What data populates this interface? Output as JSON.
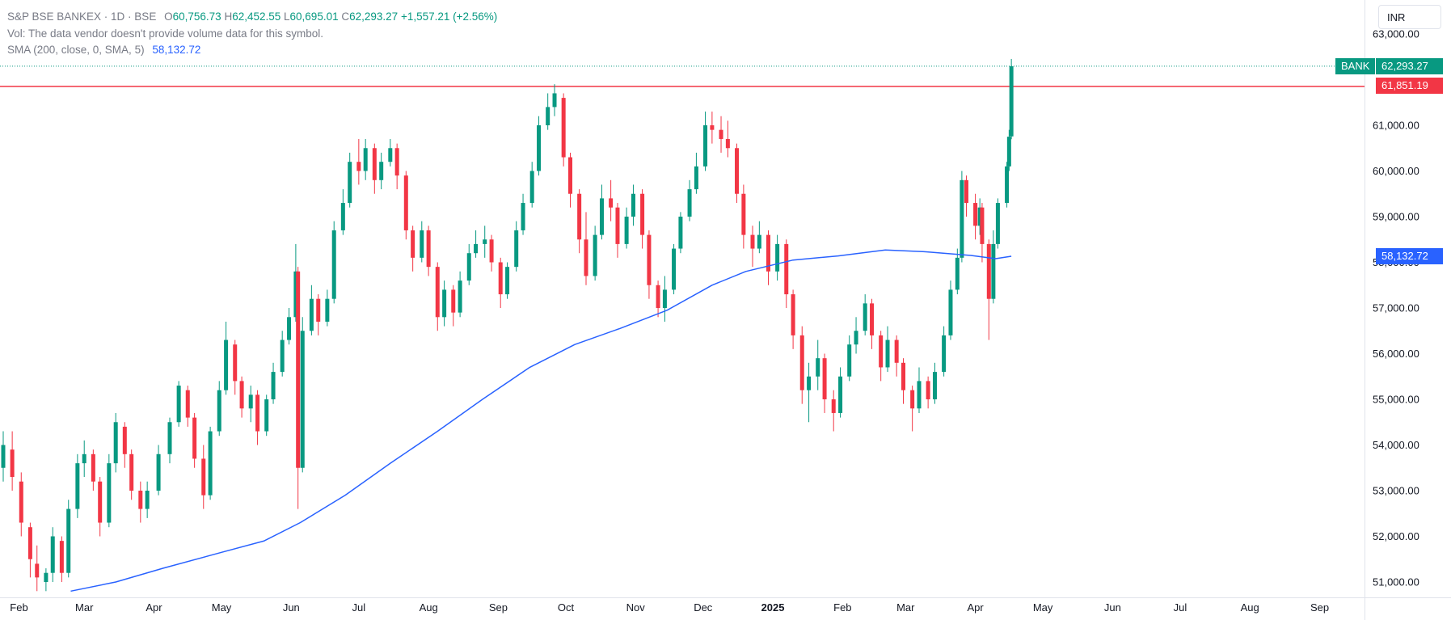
{
  "legend": {
    "symbol": "S&P BSE BANKEX · 1D · BSE",
    "o_label": "O",
    "o_value": "60,756.73",
    "h_label": "H",
    "h_value": "62,452.55",
    "l_label": "L",
    "l_value": "60,695.01",
    "c_label": "C",
    "c_value": "62,293.27",
    "change": "+1,557.21 (+2.56%)",
    "volume_note": "Vol: The data vendor doesn't provide volume data for this symbol.",
    "sma_label": "SMA (200, close, 0, SMA, 5)",
    "sma_value": "58,132.72"
  },
  "currency_button": "INR",
  "price_tags": {
    "symbol_tag": "BANK",
    "last_price": "62,293.27",
    "horizontal_line": "61,851.19",
    "sma": "58,132.72"
  },
  "chart_data": {
    "type": "candlestick",
    "symbol": "S&P BSE BANKEX",
    "interval": "1D",
    "y_axis": {
      "ticks": [
        51000,
        52000,
        53000,
        54000,
        55000,
        56000,
        57000,
        58000,
        59000,
        60000,
        61000,
        63000
      ],
      "tick_labels": [
        "51,000.00",
        "52,000.00",
        "53,000.00",
        "54,000.00",
        "55,000.00",
        "56,000.00",
        "57,000.00",
        "58,000.00",
        "59,000.00",
        "60,000.00",
        "61,000.00",
        "63,000.00"
      ],
      "range": [
        50600,
        63000
      ]
    },
    "x_axis": {
      "labels": [
        "Feb",
        "Mar",
        "Apr",
        "May",
        "Jun",
        "Jul",
        "Aug",
        "Sep",
        "Oct",
        "Nov",
        "Dec",
        "2025",
        "Feb",
        "Mar",
        "Apr",
        "May",
        "Jun",
        "Jul",
        "Aug",
        "Sep"
      ],
      "bold_labels": [
        "2025"
      ],
      "range": [
        "2024-01-25",
        "2025-09-08"
      ]
    },
    "grid": false,
    "horizontal_line": {
      "value": 61851.19,
      "color": "#f23645"
    },
    "last_price_line": {
      "value": 62293.27,
      "color": "#089981"
    },
    "colors": {
      "up": "#089981",
      "down": "#f23645",
      "sma": "#2962ff"
    },
    "sma_200": [
      [
        "2024-02-24",
        50800
      ],
      [
        "2024-03-15",
        51000
      ],
      [
        "2024-04-05",
        51300
      ],
      [
        "2024-05-01",
        51650
      ],
      [
        "2024-05-20",
        51900
      ],
      [
        "2024-06-05",
        52300
      ],
      [
        "2024-06-25",
        52900
      ],
      [
        "2024-07-15",
        53600
      ],
      [
        "2024-08-05",
        54300
      ],
      [
        "2024-08-25",
        55000
      ],
      [
        "2024-09-15",
        55700
      ],
      [
        "2024-10-05",
        56200
      ],
      [
        "2024-10-25",
        56550
      ],
      [
        "2024-11-15",
        56950
      ],
      [
        "2024-12-05",
        57500
      ],
      [
        "2024-12-20",
        57800
      ],
      [
        "2025-01-10",
        58050
      ],
      [
        "2025-01-30",
        58140
      ],
      [
        "2025-02-20",
        58270
      ],
      [
        "2025-03-10",
        58230
      ],
      [
        "2025-03-30",
        58150
      ],
      [
        "2025-04-10",
        58080
      ],
      [
        "2025-04-17",
        58132.72
      ]
    ],
    "ohlc": [
      [
        "2024-01-25",
        53500,
        54300,
        53200,
        54000
      ],
      [
        "2024-01-29",
        53900,
        54300,
        53000,
        53300
      ],
      [
        "2024-02-02",
        53200,
        53400,
        52000,
        52300
      ],
      [
        "2024-02-06",
        52200,
        52300,
        51100,
        51500
      ],
      [
        "2024-02-09",
        51400,
        51800,
        50800,
        51100
      ],
      [
        "2024-02-13",
        51000,
        51300,
        50800,
        51200
      ],
      [
        "2024-02-16",
        51200,
        52200,
        51000,
        52000
      ],
      [
        "2024-02-20",
        51900,
        52000,
        51000,
        51200
      ],
      [
        "2024-02-23",
        51200,
        52800,
        51100,
        52600
      ],
      [
        "2024-02-27",
        52600,
        53800,
        52400,
        53600
      ],
      [
        "2024-03-01",
        53600,
        54100,
        53300,
        53800
      ],
      [
        "2024-03-05",
        53800,
        53900,
        53000,
        53200
      ],
      [
        "2024-03-08",
        53200,
        53300,
        52000,
        52300
      ],
      [
        "2024-03-12",
        52300,
        53800,
        52200,
        53600
      ],
      [
        "2024-03-15",
        53600,
        54700,
        53400,
        54500
      ],
      [
        "2024-03-19",
        54400,
        54500,
        53500,
        53800
      ],
      [
        "2024-03-22",
        53800,
        53900,
        52800,
        53000
      ],
      [
        "2024-03-26",
        53000,
        53200,
        52300,
        52600
      ],
      [
        "2024-03-29",
        52600,
        53200,
        52400,
        53000
      ],
      [
        "2024-04-03",
        53000,
        54000,
        52900,
        53800
      ],
      [
        "2024-04-08",
        53800,
        54600,
        53600,
        54500
      ],
      [
        "2024-04-12",
        54500,
        55400,
        54400,
        55300
      ],
      [
        "2024-04-16",
        55200,
        55300,
        54400,
        54600
      ],
      [
        "2024-04-19",
        54600,
        54700,
        53500,
        53700
      ],
      [
        "2024-04-23",
        53700,
        54000,
        52600,
        52900
      ],
      [
        "2024-04-26",
        52900,
        54400,
        52800,
        54300
      ],
      [
        "2024-04-30",
        54300,
        55400,
        54200,
        55200
      ],
      [
        "2024-05-03",
        55200,
        56700,
        55100,
        56300
      ],
      [
        "2024-05-07",
        56200,
        56300,
        55100,
        55400
      ],
      [
        "2024-05-10",
        55400,
        55500,
        54600,
        54800
      ],
      [
        "2024-05-14",
        54800,
        55300,
        54500,
        55100
      ],
      [
        "2024-05-17",
        55100,
        55200,
        54000,
        54300
      ],
      [
        "2024-05-21",
        54300,
        55100,
        54200,
        55000
      ],
      [
        "2024-05-24",
        55000,
        55800,
        54900,
        55600
      ],
      [
        "2024-05-28",
        55600,
        56500,
        55500,
        56300
      ],
      [
        "2024-05-31",
        56300,
        57000,
        56200,
        56800
      ],
      [
        "2024-06-03",
        56800,
        58400,
        56700,
        57800
      ],
      [
        "2024-06-04",
        57800,
        57900,
        52600,
        53500
      ],
      [
        "2024-06-06",
        53500,
        56800,
        53400,
        56500
      ],
      [
        "2024-06-10",
        56500,
        57500,
        56400,
        57200
      ],
      [
        "2024-06-13",
        57200,
        57300,
        56400,
        56700
      ],
      [
        "2024-06-17",
        56700,
        57400,
        56600,
        57200
      ],
      [
        "2024-06-20",
        57200,
        58900,
        57100,
        58700
      ],
      [
        "2024-06-24",
        58700,
        59600,
        58600,
        59300
      ],
      [
        "2024-06-27",
        59300,
        60400,
        59200,
        60200
      ],
      [
        "2024-07-01",
        60200,
        60700,
        59700,
        60000
      ],
      [
        "2024-07-04",
        60000,
        60700,
        59800,
        60500
      ],
      [
        "2024-07-08",
        60500,
        60600,
        59500,
        59800
      ],
      [
        "2024-07-11",
        59800,
        60400,
        59600,
        60200
      ],
      [
        "2024-07-15",
        60200,
        60700,
        60100,
        60500
      ],
      [
        "2024-07-18",
        60500,
        60600,
        59600,
        59900
      ],
      [
        "2024-07-22",
        59900,
        60000,
        58500,
        58700
      ],
      [
        "2024-07-25",
        58700,
        58800,
        57800,
        58100
      ],
      [
        "2024-07-29",
        58100,
        58900,
        58000,
        58700
      ],
      [
        "2024-08-01",
        58700,
        58800,
        57700,
        57900
      ],
      [
        "2024-08-05",
        57900,
        58000,
        56500,
        56800
      ],
      [
        "2024-08-08",
        56800,
        57600,
        56600,
        57400
      ],
      [
        "2024-08-12",
        57400,
        57500,
        56600,
        56900
      ],
      [
        "2024-08-15",
        56900,
        57800,
        56800,
        57600
      ],
      [
        "2024-08-19",
        57600,
        58400,
        57500,
        58200
      ],
      [
        "2024-08-22",
        58200,
        58700,
        58100,
        58400
      ],
      [
        "2024-08-26",
        58400,
        58800,
        58100,
        58500
      ],
      [
        "2024-08-29",
        58500,
        58600,
        57800,
        58000
      ],
      [
        "2024-09-02",
        58000,
        58100,
        57000,
        57300
      ],
      [
        "2024-09-05",
        57300,
        58000,
        57200,
        57900
      ],
      [
        "2024-09-09",
        57900,
        58900,
        57800,
        58700
      ],
      [
        "2024-09-12",
        58700,
        59500,
        58600,
        59300
      ],
      [
        "2024-09-16",
        59300,
        60200,
        59200,
        60000
      ],
      [
        "2024-09-19",
        60000,
        61200,
        59900,
        61000
      ],
      [
        "2024-09-23",
        61000,
        61700,
        60900,
        61400
      ],
      [
        "2024-09-26",
        61400,
        61900,
        61200,
        61700
      ],
      [
        "2024-09-30",
        61600,
        61700,
        60100,
        60300
      ],
      [
        "2024-10-03",
        60300,
        60400,
        59200,
        59500
      ],
      [
        "2024-10-07",
        59500,
        59600,
        58200,
        58500
      ],
      [
        "2024-10-10",
        58500,
        59100,
        57500,
        57700
      ],
      [
        "2024-10-14",
        57700,
        58800,
        57600,
        58600
      ],
      [
        "2024-10-17",
        58600,
        59700,
        58500,
        59400
      ],
      [
        "2024-10-21",
        59400,
        59800,
        58900,
        59200
      ],
      [
        "2024-10-24",
        59200,
        59300,
        58100,
        58400
      ],
      [
        "2024-10-28",
        58400,
        59200,
        58300,
        59000
      ],
      [
        "2024-10-31",
        59000,
        59700,
        58800,
        59500
      ],
      [
        "2024-11-04",
        59500,
        59600,
        58300,
        58600
      ],
      [
        "2024-11-07",
        58600,
        58700,
        57200,
        57500
      ],
      [
        "2024-11-11",
        57500,
        57600,
        56800,
        57000
      ],
      [
        "2024-11-14",
        57000,
        57700,
        56700,
        57400
      ],
      [
        "2024-11-18",
        57400,
        58400,
        57300,
        58300
      ],
      [
        "2024-11-21",
        58300,
        59100,
        58200,
        59000
      ],
      [
        "2024-11-25",
        59000,
        59800,
        58900,
        59600
      ],
      [
        "2024-11-28",
        59600,
        60400,
        59500,
        60100
      ],
      [
        "2024-12-02",
        60100,
        61300,
        60000,
        61000
      ],
      [
        "2024-12-05",
        61000,
        61300,
        60600,
        60900
      ],
      [
        "2024-12-09",
        60900,
        61200,
        60400,
        60700
      ],
      [
        "2024-12-12",
        60700,
        61100,
        60300,
        60500
      ],
      [
        "2024-12-16",
        60500,
        60600,
        59300,
        59500
      ],
      [
        "2024-12-19",
        59500,
        59700,
        58300,
        58600
      ],
      [
        "2024-12-23",
        58600,
        58800,
        57900,
        58300
      ],
      [
        "2024-12-26",
        58300,
        58900,
        58200,
        58600
      ],
      [
        "2024-12-30",
        58600,
        58700,
        57500,
        57800
      ],
      [
        "2025-01-03",
        57800,
        58600,
        57600,
        58400
      ],
      [
        "2025-01-07",
        58400,
        58500,
        57000,
        57300
      ],
      [
        "2025-01-10",
        57300,
        57400,
        56100,
        56400
      ],
      [
        "2025-01-14",
        56400,
        56600,
        54900,
        55200
      ],
      [
        "2025-01-17",
        55200,
        55800,
        54500,
        55500
      ],
      [
        "2025-01-21",
        55500,
        56300,
        55200,
        55900
      ],
      [
        "2025-01-24",
        55900,
        56000,
        54700,
        55000
      ],
      [
        "2025-01-28",
        55000,
        55200,
        54300,
        54700
      ],
      [
        "2025-01-31",
        54700,
        55700,
        54600,
        55500
      ],
      [
        "2025-02-04",
        55500,
        56400,
        55400,
        56200
      ],
      [
        "2025-02-07",
        56200,
        56800,
        56000,
        56500
      ],
      [
        "2025-02-11",
        56500,
        57300,
        56400,
        57100
      ],
      [
        "2025-02-14",
        57100,
        57200,
        56100,
        56400
      ],
      [
        "2025-02-18",
        56400,
        56500,
        55400,
        55700
      ],
      [
        "2025-02-21",
        55700,
        56600,
        55600,
        56300
      ],
      [
        "2025-02-25",
        56300,
        56400,
        55500,
        55800
      ],
      [
        "2025-02-28",
        55800,
        55900,
        54900,
        55200
      ],
      [
        "2025-03-04",
        55200,
        55300,
        54300,
        54800
      ],
      [
        "2025-03-07",
        54800,
        55700,
        54700,
        55400
      ],
      [
        "2025-03-11",
        55400,
        55500,
        54800,
        55000
      ],
      [
        "2025-03-14",
        55000,
        55800,
        54900,
        55600
      ],
      [
        "2025-03-18",
        55600,
        56600,
        55500,
        56400
      ],
      [
        "2025-03-21",
        56400,
        57600,
        56300,
        57400
      ],
      [
        "2025-03-24",
        57400,
        58300,
        57300,
        58100
      ],
      [
        "2025-03-26",
        58100,
        60000,
        58000,
        59800
      ],
      [
        "2025-03-28",
        59800,
        59900,
        59000,
        59300
      ],
      [
        "2025-04-01",
        59300,
        59500,
        58500,
        58800
      ],
      [
        "2025-04-03",
        58800,
        59400,
        58600,
        59200
      ],
      [
        "2025-04-04",
        59200,
        59300,
        58000,
        58400
      ],
      [
        "2025-04-07",
        58400,
        58500,
        56300,
        57200
      ],
      [
        "2025-04-09",
        57200,
        58700,
        57100,
        58400
      ],
      [
        "2025-04-11",
        58400,
        59400,
        58300,
        59300
      ],
      [
        "2025-04-15",
        59300,
        60200,
        59200,
        60100
      ],
      [
        "2025-04-16",
        60100,
        60900,
        60000,
        60750
      ],
      [
        "2025-04-17",
        60756.73,
        62452.55,
        60695.01,
        62293.27
      ]
    ]
  }
}
